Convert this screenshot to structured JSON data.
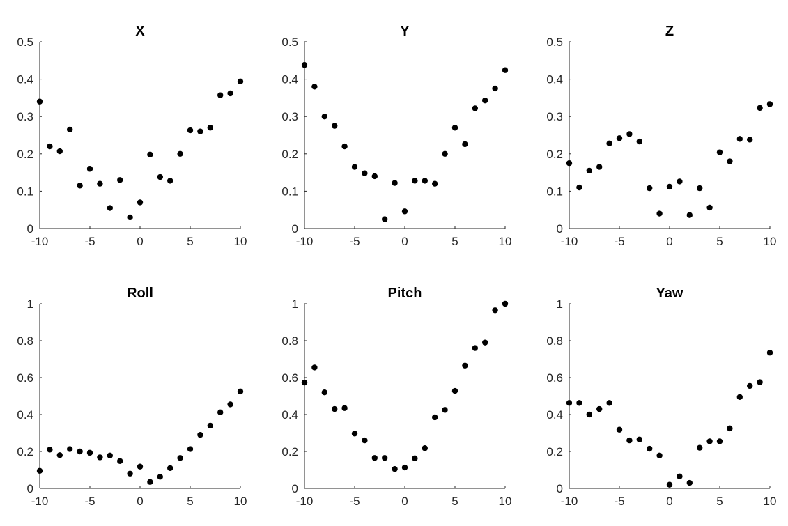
{
  "chart_data": [
    {
      "type": "scatter",
      "title": "X",
      "xlabel": "",
      "ylabel": "",
      "xlim": [
        -10,
        10
      ],
      "ylim": [
        0,
        0.5
      ],
      "xticks": [
        "-10",
        "-5",
        "0",
        "5",
        "10"
      ],
      "yticks": [
        "0",
        "0.1",
        "0.2",
        "0.3",
        "0.4",
        "0.5"
      ],
      "grid": false,
      "marker_color": "#000000",
      "x": [
        -10,
        -9,
        -8,
        -7,
        -6,
        -5,
        -4,
        -3,
        -2,
        -1,
        0,
        1,
        2,
        3,
        4,
        5,
        6,
        7,
        8,
        9,
        10
      ],
      "y": [
        0.34,
        0.22,
        0.207,
        0.265,
        0.115,
        0.16,
        0.12,
        0.055,
        0.13,
        0.03,
        0.07,
        0.198,
        0.138,
        0.128,
        0.2,
        0.263,
        0.26,
        0.27,
        0.357,
        0.362,
        0.394
      ]
    },
    {
      "type": "scatter",
      "title": "Y",
      "xlabel": "",
      "ylabel": "",
      "xlim": [
        -10,
        10
      ],
      "ylim": [
        0,
        0.5
      ],
      "xticks": [
        "-10",
        "-5",
        "0",
        "5",
        "10"
      ],
      "yticks": [
        "0",
        "0.1",
        "0.2",
        "0.3",
        "0.4",
        "0.5"
      ],
      "grid": false,
      "marker_color": "#000000",
      "x": [
        -10,
        -9,
        -8,
        -7,
        -6,
        -5,
        -4,
        -3,
        -2,
        -1,
        0,
        1,
        2,
        3,
        4,
        5,
        6,
        7,
        8,
        9,
        10
      ],
      "y": [
        0.438,
        0.38,
        0.3,
        0.275,
        0.22,
        0.165,
        0.148,
        0.14,
        0.025,
        0.122,
        0.046,
        0.128,
        0.128,
        0.12,
        0.2,
        0.27,
        0.226,
        0.322,
        0.343,
        0.375,
        0.424
      ]
    },
    {
      "type": "scatter",
      "title": "Z",
      "xlabel": "",
      "ylabel": "",
      "xlim": [
        -10,
        10
      ],
      "ylim": [
        0,
        0.5
      ],
      "xticks": [
        "-10",
        "-5",
        "0",
        "5",
        "10"
      ],
      "yticks": [
        "0",
        "0.1",
        "0.2",
        "0.3",
        "0.4",
        "0.5"
      ],
      "grid": false,
      "marker_color": "#000000",
      "x": [
        -10,
        -9,
        -8,
        -7,
        -6,
        -5,
        -4,
        -3,
        -2,
        -1,
        0,
        1,
        2,
        3,
        4,
        5,
        6,
        7,
        8,
        9,
        10
      ],
      "y": [
        0.175,
        0.11,
        0.155,
        0.165,
        0.228,
        0.242,
        0.253,
        0.233,
        0.108,
        0.04,
        0.112,
        0.126,
        0.036,
        0.108,
        0.056,
        0.204,
        0.18,
        0.24,
        0.238,
        0.323,
        0.333
      ]
    },
    {
      "type": "scatter",
      "title": "Roll",
      "xlabel": "",
      "ylabel": "",
      "xlim": [
        -10,
        10
      ],
      "ylim": [
        0,
        1
      ],
      "xticks": [
        "-10",
        "-5",
        "0",
        "5",
        "10"
      ],
      "yticks": [
        "0",
        "0.2",
        "0.4",
        "0.6",
        "0.8",
        "1"
      ],
      "grid": false,
      "marker_color": "#000000",
      "x": [
        -10,
        -9,
        -8,
        -7,
        -6,
        -5,
        -4,
        -3,
        -2,
        -1,
        0,
        1,
        2,
        3,
        4,
        5,
        6,
        7,
        8,
        9,
        10
      ],
      "y": [
        0.095,
        0.21,
        0.18,
        0.213,
        0.2,
        0.193,
        0.168,
        0.178,
        0.148,
        0.08,
        0.118,
        0.035,
        0.063,
        0.11,
        0.165,
        0.213,
        0.29,
        0.34,
        0.412,
        0.455,
        0.525
      ]
    },
    {
      "type": "scatter",
      "title": "Pitch",
      "xlabel": "",
      "ylabel": "",
      "xlim": [
        -10,
        10
      ],
      "ylim": [
        0,
        1
      ],
      "xticks": [
        "-10",
        "-5",
        "0",
        "5",
        "10"
      ],
      "yticks": [
        "0",
        "0.2",
        "0.4",
        "0.6",
        "0.8",
        "1"
      ],
      "grid": false,
      "marker_color": "#000000",
      "x": [
        -10,
        -9,
        -8,
        -7,
        -6,
        -5,
        -4,
        -3,
        -2,
        -1,
        0,
        1,
        2,
        3,
        4,
        5,
        6,
        7,
        8,
        9,
        10
      ],
      "y": [
        0.573,
        0.655,
        0.52,
        0.43,
        0.435,
        0.297,
        0.26,
        0.165,
        0.165,
        0.105,
        0.113,
        0.163,
        0.218,
        0.385,
        0.425,
        0.528,
        0.665,
        0.76,
        0.79,
        0.965,
        1.0
      ]
    },
    {
      "type": "scatter",
      "title": "Yaw",
      "xlabel": "",
      "ylabel": "",
      "xlim": [
        -10,
        10
      ],
      "ylim": [
        0,
        1
      ],
      "xticks": [
        "-10",
        "-5",
        "0",
        "5",
        "10"
      ],
      "yticks": [
        "0",
        "0.2",
        "0.4",
        "0.6",
        "0.8",
        "1"
      ],
      "grid": false,
      "marker_color": "#000000",
      "x": [
        -10,
        -9,
        -8,
        -7,
        -6,
        -5,
        -4,
        -3,
        -2,
        -1,
        0,
        1,
        2,
        3,
        4,
        5,
        6,
        7,
        8,
        9,
        10
      ],
      "y": [
        0.463,
        0.463,
        0.4,
        0.43,
        0.463,
        0.318,
        0.26,
        0.265,
        0.215,
        0.178,
        0.02,
        0.065,
        0.03,
        0.22,
        0.255,
        0.255,
        0.325,
        0.495,
        0.555,
        0.575,
        0.735
      ]
    }
  ]
}
